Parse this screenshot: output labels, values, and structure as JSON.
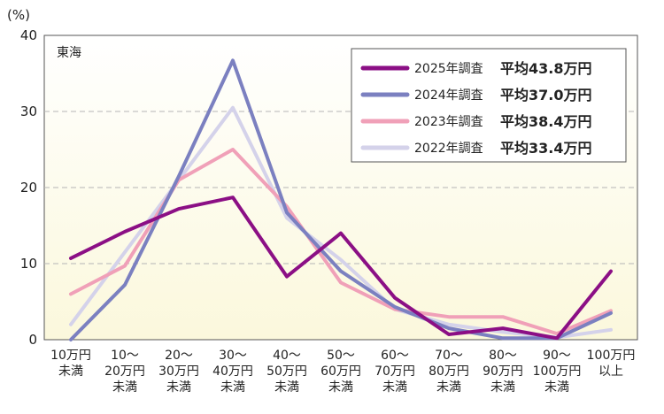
{
  "chart_data": {
    "type": "line",
    "region_label": "東海",
    "y_unit": "(%)",
    "ylim": [
      0,
      40
    ],
    "yticks": [
      0,
      10,
      20,
      30,
      40
    ],
    "grid": true,
    "legend_position": "top-right",
    "categories": [
      [
        "10万円",
        "未満"
      ],
      [
        "10～",
        "20万円",
        "未満"
      ],
      [
        "20～",
        "30万円",
        "未満"
      ],
      [
        "30～",
        "40万円",
        "未満"
      ],
      [
        "40～",
        "50万円",
        "未満"
      ],
      [
        "50～",
        "60万円",
        "未満"
      ],
      [
        "60～",
        "70万円",
        "未満"
      ],
      [
        "70～",
        "80万円",
        "未満"
      ],
      [
        "80～",
        "90万円",
        "未満"
      ],
      [
        "90～",
        "100万円",
        "未満"
      ],
      [
        "100万円",
        "以上"
      ]
    ],
    "series": [
      {
        "name": "2022年調査",
        "average": "平均33.4万円",
        "color": "#d4d2ea",
        "values": [
          2.0,
          11.5,
          21.0,
          30.5,
          16.0,
          10.5,
          4.0,
          2.0,
          1.0,
          0.3,
          1.3
        ]
      },
      {
        "name": "2023年調査",
        "average": "平均38.4万円",
        "color": "#f0a0b8",
        "values": [
          6.0,
          9.7,
          21.0,
          25.0,
          17.5,
          7.5,
          4.0,
          3.0,
          3.0,
          0.8,
          3.8
        ]
      },
      {
        "name": "2024年調査",
        "average": "平均37.0万円",
        "color": "#7b80c0",
        "values": [
          0.0,
          7.2,
          21.5,
          36.7,
          16.7,
          9.0,
          4.3,
          1.5,
          0.2,
          0.2,
          3.5
        ]
      },
      {
        "name": "2025年調査",
        "average": "平均43.8万円",
        "color": "#8b0f85",
        "values": [
          10.7,
          14.2,
          17.2,
          18.7,
          8.3,
          14.0,
          5.5,
          0.7,
          1.5,
          0.2,
          9.0
        ]
      }
    ],
    "legend_order": [
      3,
      2,
      1,
      0
    ]
  }
}
